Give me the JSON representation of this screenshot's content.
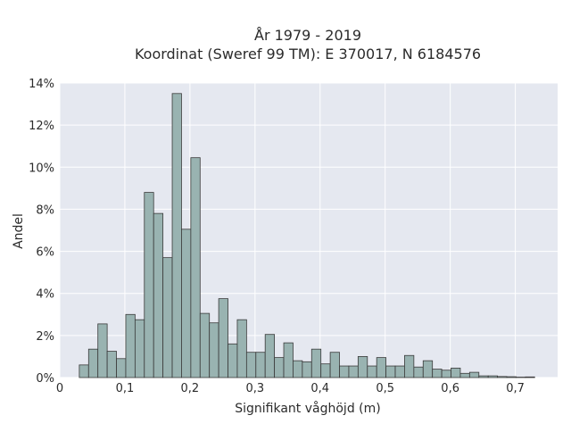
{
  "chart_data": {
    "type": "bar",
    "title": "År 1979 - 2019",
    "subtitle": "Koordinat (Sweref 99 TM): E 370017, N 6184576",
    "xlabel": "Signifikant våghöjd (m)",
    "ylabel": "Andel",
    "xlim": [
      0,
      0.765
    ],
    "ylim": [
      0,
      14
    ],
    "x_ticks": [
      {
        "value": 0,
        "label": "0"
      },
      {
        "value": 0.1,
        "label": "0,1"
      },
      {
        "value": 0.2,
        "label": "0,2"
      },
      {
        "value": 0.3,
        "label": "0,3"
      },
      {
        "value": 0.4,
        "label": "0,4"
      },
      {
        "value": 0.5,
        "label": "0,5"
      },
      {
        "value": 0.6,
        "label": "0,6"
      },
      {
        "value": 0.7,
        "label": "0,7"
      }
    ],
    "y_ticks": [
      {
        "value": 0,
        "label": "0%"
      },
      {
        "value": 2,
        "label": "2%"
      },
      {
        "value": 4,
        "label": "4%"
      },
      {
        "value": 6,
        "label": "6%"
      },
      {
        "value": 8,
        "label": "8%"
      },
      {
        "value": 10,
        "label": "10%"
      },
      {
        "value": 12,
        "label": "12%"
      },
      {
        "value": 14,
        "label": "14%"
      }
    ],
    "grid": true,
    "bar_color": "#99b3b1",
    "bar_edge_color": "#3a3a3a",
    "plot_background": "#e5e8f0",
    "bins": {
      "start": 0.03,
      "width": 0.01428,
      "values": [
        0.6,
        1.35,
        2.55,
        1.25,
        0.9,
        3.0,
        2.75,
        8.8,
        7.8,
        5.7,
        13.5,
        7.05,
        10.45,
        3.05,
        2.6,
        3.75,
        1.6,
        2.75,
        1.2,
        1.2,
        2.05,
        0.95,
        1.65,
        0.8,
        0.75,
        1.35,
        0.65,
        1.2,
        0.55,
        0.55,
        1.0,
        0.55,
        0.95,
        0.55,
        0.55,
        1.05,
        0.5,
        0.8,
        0.4,
        0.35,
        0.45,
        0.2,
        0.25,
        0.08,
        0.08,
        0.05,
        0.04,
        0.02,
        0.03
      ]
    }
  }
}
